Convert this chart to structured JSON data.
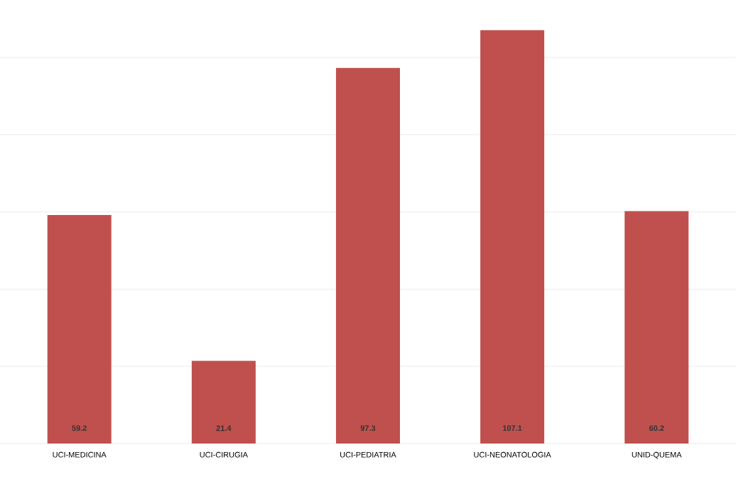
{
  "chart_data": {
    "type": "bar",
    "categories": [
      "UCI-MEDICINA",
      "UCI-CIRUGIA",
      "UCI-PEDIATRIA",
      "UCI-NEONATOLOGIA",
      "UNID-QUEMA"
    ],
    "values": [
      59.2,
      21.4,
      97.3,
      107.1,
      60.2
    ],
    "color": "#c0504d",
    "yticks": [
      {
        "value": 0,
        "label": null
      },
      {
        "value": 20,
        "label": null
      },
      {
        "value": 40,
        "label": null
      },
      {
        "value": 60,
        "label": null
      },
      {
        "value": 80,
        "label": null
      },
      {
        "value": 100,
        "label": null
      }
    ],
    "tick_labels": "x",
    "grid": "y",
    "data_labels": true
  }
}
